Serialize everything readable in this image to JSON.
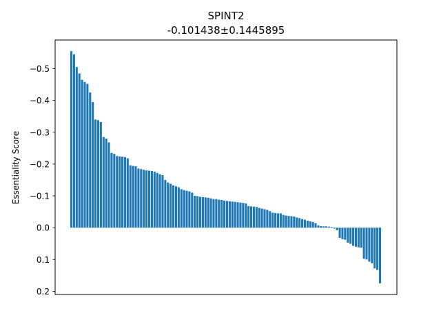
{
  "chart_data": {
    "type": "bar",
    "title": "SPINT2",
    "subtitle": "-0.101438±0.1445895",
    "xlabel": "",
    "ylabel": "Essentiality Score",
    "y_inverted": true,
    "ylim": [
      0.21,
      -0.59
    ],
    "yticks": [
      {
        "value": -0.5,
        "label": "−0.5"
      },
      {
        "value": -0.4,
        "label": "−0.4"
      },
      {
        "value": -0.3,
        "label": "−0.3"
      },
      {
        "value": -0.2,
        "label": "−0.2"
      },
      {
        "value": -0.1,
        "label": "−0.1"
      },
      {
        "value": 0.0,
        "label": "0.0"
      },
      {
        "value": 0.1,
        "label": "0.1"
      },
      {
        "value": 0.2,
        "label": "0.2"
      }
    ],
    "grid": false,
    "bar_color": "#1f77b4",
    "values": [
      -0.555,
      -0.545,
      -0.505,
      -0.485,
      -0.465,
      -0.458,
      -0.452,
      -0.425,
      -0.395,
      -0.34,
      -0.338,
      -0.332,
      -0.285,
      -0.28,
      -0.268,
      -0.235,
      -0.232,
      -0.225,
      -0.224,
      -0.223,
      -0.222,
      -0.218,
      -0.196,
      -0.194,
      -0.193,
      -0.186,
      -0.184,
      -0.182,
      -0.18,
      -0.179,
      -0.178,
      -0.176,
      -0.172,
      -0.168,
      -0.165,
      -0.15,
      -0.142,
      -0.138,
      -0.133,
      -0.13,
      -0.127,
      -0.121,
      -0.118,
      -0.116,
      -0.114,
      -0.11,
      -0.1,
      -0.099,
      -0.097,
      -0.096,
      -0.095,
      -0.094,
      -0.092,
      -0.09,
      -0.09,
      -0.088,
      -0.087,
      -0.085,
      -0.084,
      -0.083,
      -0.082,
      -0.081,
      -0.08,
      -0.079,
      -0.078,
      -0.076,
      -0.068,
      -0.067,
      -0.066,
      -0.065,
      -0.062,
      -0.06,
      -0.058,
      -0.056,
      -0.052,
      -0.047,
      -0.046,
      -0.045,
      -0.045,
      -0.04,
      -0.038,
      -0.037,
      -0.036,
      -0.035,
      -0.032,
      -0.03,
      -0.027,
      -0.025,
      -0.022,
      -0.02,
      -0.018,
      -0.014,
      -0.007,
      -0.005,
      -0.004,
      -0.004,
      -0.003,
      -0.002,
      0.003,
      0.008,
      0.032,
      0.036,
      0.038,
      0.047,
      0.051,
      0.057,
      0.06,
      0.062,
      0.063,
      0.098,
      0.1,
      0.107,
      0.112,
      0.128,
      0.133,
      0.175
    ]
  }
}
